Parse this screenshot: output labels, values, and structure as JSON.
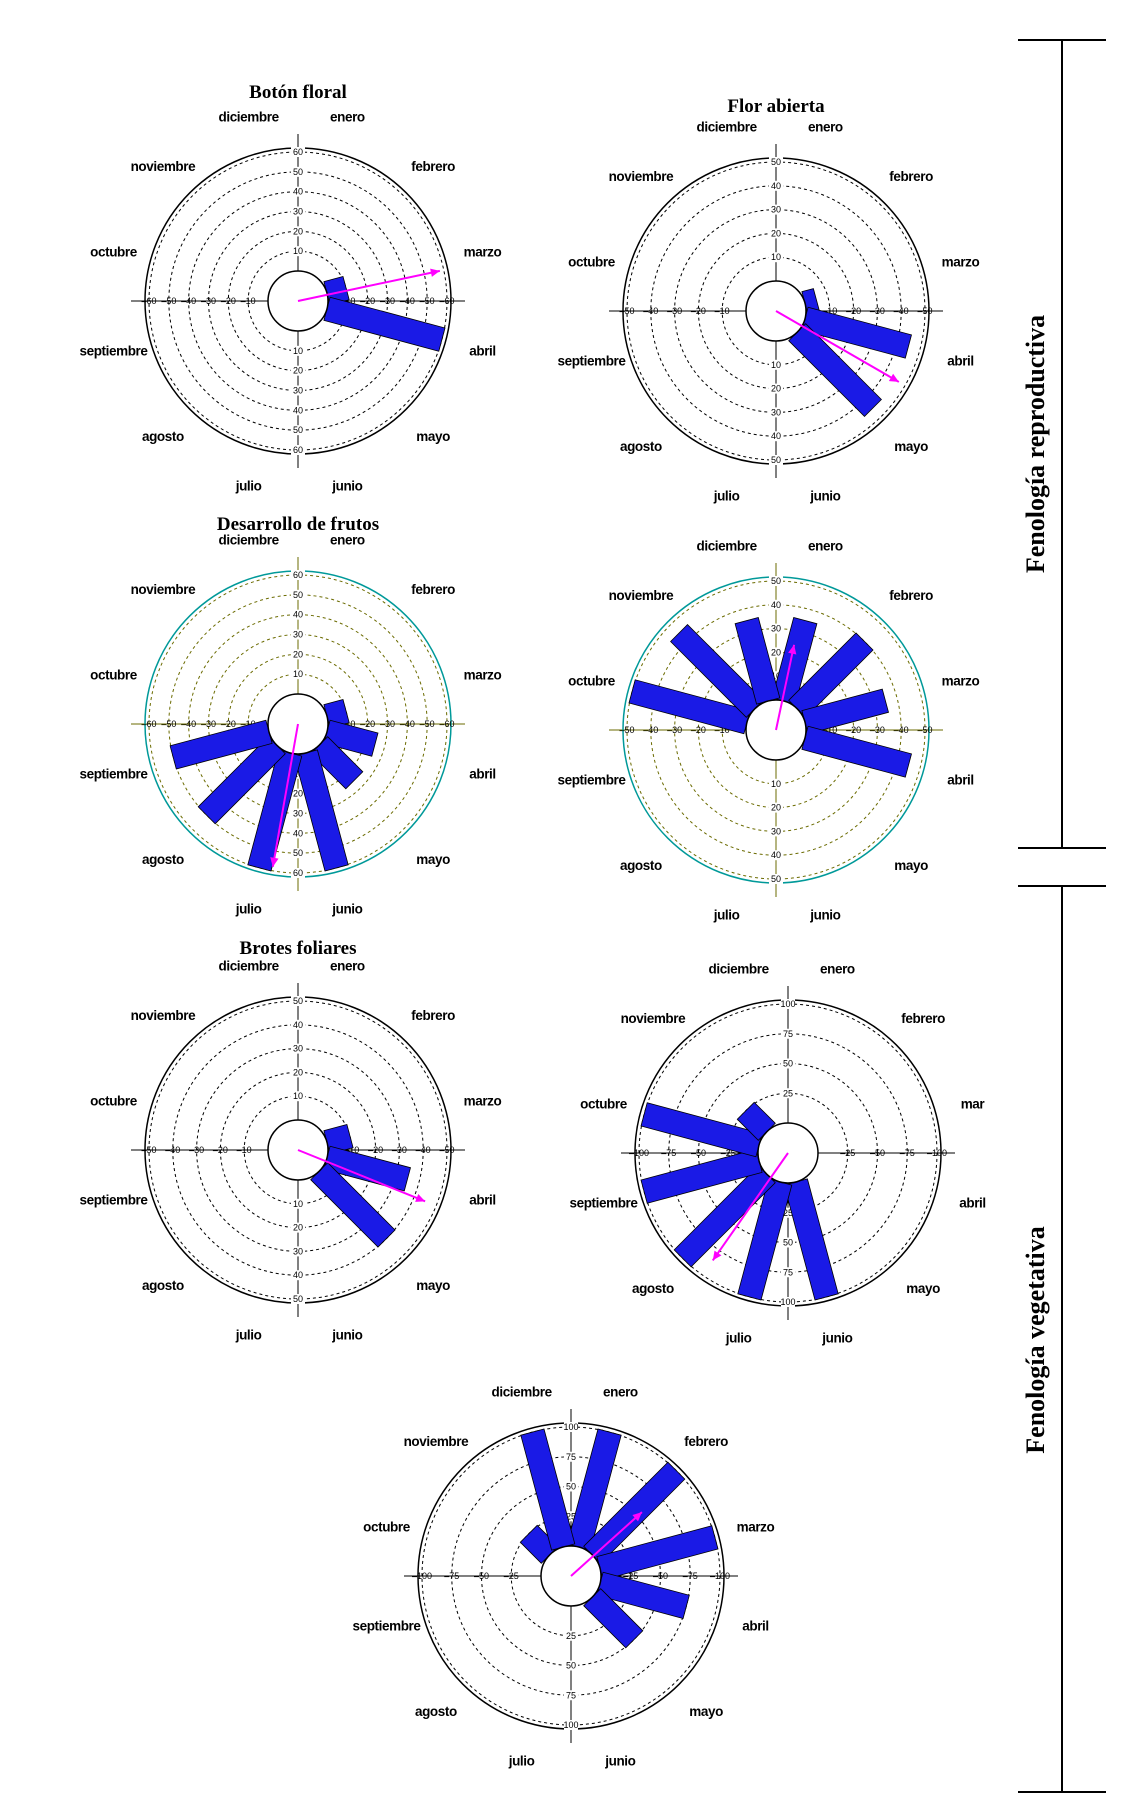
{
  "sections": {
    "reproductive": "Fenología reproductiva",
    "vegetative": "Fenología vegetativa"
  },
  "chart_data": [
    {
      "type": "rose",
      "title": "Botón floral",
      "months": [
        "enero",
        "febrero",
        "marzo",
        "abril",
        "mayo",
        "junio",
        "julio",
        "agosto",
        "septiembre",
        "octubre",
        "noviembre",
        "diciembre"
      ],
      "values": [
        0,
        0,
        10,
        60,
        0,
        0,
        0,
        0,
        0,
        0,
        0,
        0
      ],
      "radial_ticks": [
        10,
        20,
        30,
        40,
        50,
        60
      ],
      "rmax": 60,
      "mean_angle_deg": 78,
      "mean_length": 58,
      "colors": {
        "ring": "#000000",
        "grid": "#000000",
        "bar": "#1a1ae6",
        "vector": "#ff00ff"
      }
    },
    {
      "type": "rose",
      "title": "Flor abierta",
      "months": [
        "enero",
        "febrero",
        "marzo",
        "abril",
        "mayo",
        "junio",
        "julio",
        "agosto",
        "septiembre",
        "octubre",
        "noviembre",
        "diciembre"
      ],
      "values": [
        0,
        0,
        5,
        45,
        45,
        0,
        0,
        0,
        0,
        0,
        0,
        0
      ],
      "radial_ticks": [
        10,
        20,
        30,
        40,
        50
      ],
      "rmax": 50,
      "mean_angle_deg": 120,
      "mean_length": 47,
      "colors": {
        "ring": "#000000",
        "grid": "#000000",
        "bar": "#1a1ae6",
        "vector": "#ff00ff"
      }
    },
    {
      "type": "rose",
      "title": "Desarrollo de frutos",
      "months": [
        "enero",
        "febrero",
        "marzo",
        "abril",
        "mayo",
        "junio",
        "julio",
        "agosto",
        "septiembre",
        "octubre",
        "noviembre",
        "diciembre"
      ],
      "values": [
        0,
        0,
        10,
        25,
        25,
        60,
        60,
        50,
        50,
        0,
        0,
        0
      ],
      "radial_ticks": [
        10,
        20,
        30,
        40,
        50,
        60
      ],
      "rmax": 60,
      "mean_angle_deg": 190,
      "mean_length": 58,
      "colors": {
        "ring": "#009999",
        "grid": "#6b6b00",
        "bar": "#1a1ae6",
        "vector": "#ff00ff"
      }
    },
    {
      "type": "rose",
      "title": "",
      "months": [
        "enero",
        "febrero",
        "marzo",
        "abril",
        "mayo",
        "junio",
        "julio",
        "agosto",
        "septiembre",
        "octubre",
        "noviembre",
        "diciembre"
      ],
      "values": [
        35,
        40,
        35,
        45,
        0,
        0,
        0,
        0,
        0,
        50,
        45,
        35
      ],
      "radial_ticks": [
        10,
        20,
        30,
        40,
        50
      ],
      "rmax": 50,
      "mean_angle_deg": 12,
      "mean_length": 24,
      "colors": {
        "ring": "#009999",
        "grid": "#6b6b00",
        "bar": "#1a1ae6",
        "vector": "#ff00ff"
      }
    },
    {
      "type": "rose",
      "title": "Brotes foliares",
      "months": [
        "enero",
        "febrero",
        "marzo",
        "abril",
        "mayo",
        "junio",
        "julio",
        "agosto",
        "septiembre",
        "octubre",
        "noviembre",
        "diciembre"
      ],
      "values": [
        0,
        0,
        10,
        35,
        40,
        0,
        0,
        0,
        0,
        0,
        0,
        0
      ],
      "radial_ticks": [
        10,
        20,
        30,
        40,
        50
      ],
      "rmax": 50,
      "mean_angle_deg": 112,
      "mean_length": 45,
      "colors": {
        "ring": "#000000",
        "grid": "#000000",
        "bar": "#1a1ae6",
        "vector": "#ff00ff"
      }
    },
    {
      "type": "rose",
      "title": "",
      "months": [
        "enero",
        "febrero",
        "mar",
        "abril",
        "mayo",
        "junio",
        "julio",
        "agosto",
        "septiembre",
        "octubre",
        "noviembre",
        "diciembre"
      ],
      "values": [
        0,
        0,
        0,
        0,
        0,
        100,
        100,
        100,
        100,
        100,
        25,
        0
      ],
      "radial_ticks": [
        25,
        50,
        75,
        100
      ],
      "rmax": 100,
      "mean_angle_deg": 215,
      "mean_length": 85,
      "colors": {
        "ring": "#000000",
        "grid": "#000000",
        "bar": "#1a1ae6",
        "vector": "#ff00ff"
      }
    },
    {
      "type": "rose",
      "title": "",
      "months": [
        "enero",
        "febrero",
        "marzo",
        "abril",
        "mayo",
        "junio",
        "julio",
        "agosto",
        "septiembre",
        "octubre",
        "noviembre",
        "diciembre"
      ],
      "values": [
        100,
        100,
        100,
        75,
        50,
        0,
        0,
        0,
        0,
        0,
        25,
        100
      ],
      "radial_ticks": [
        25,
        50,
        75,
        100
      ],
      "rmax": 100,
      "mean_angle_deg": 48,
      "mean_length": 55,
      "colors": {
        "ring": "#000000",
        "grid": "#000000",
        "bar": "#1a1ae6",
        "vector": "#ff00ff"
      }
    }
  ]
}
